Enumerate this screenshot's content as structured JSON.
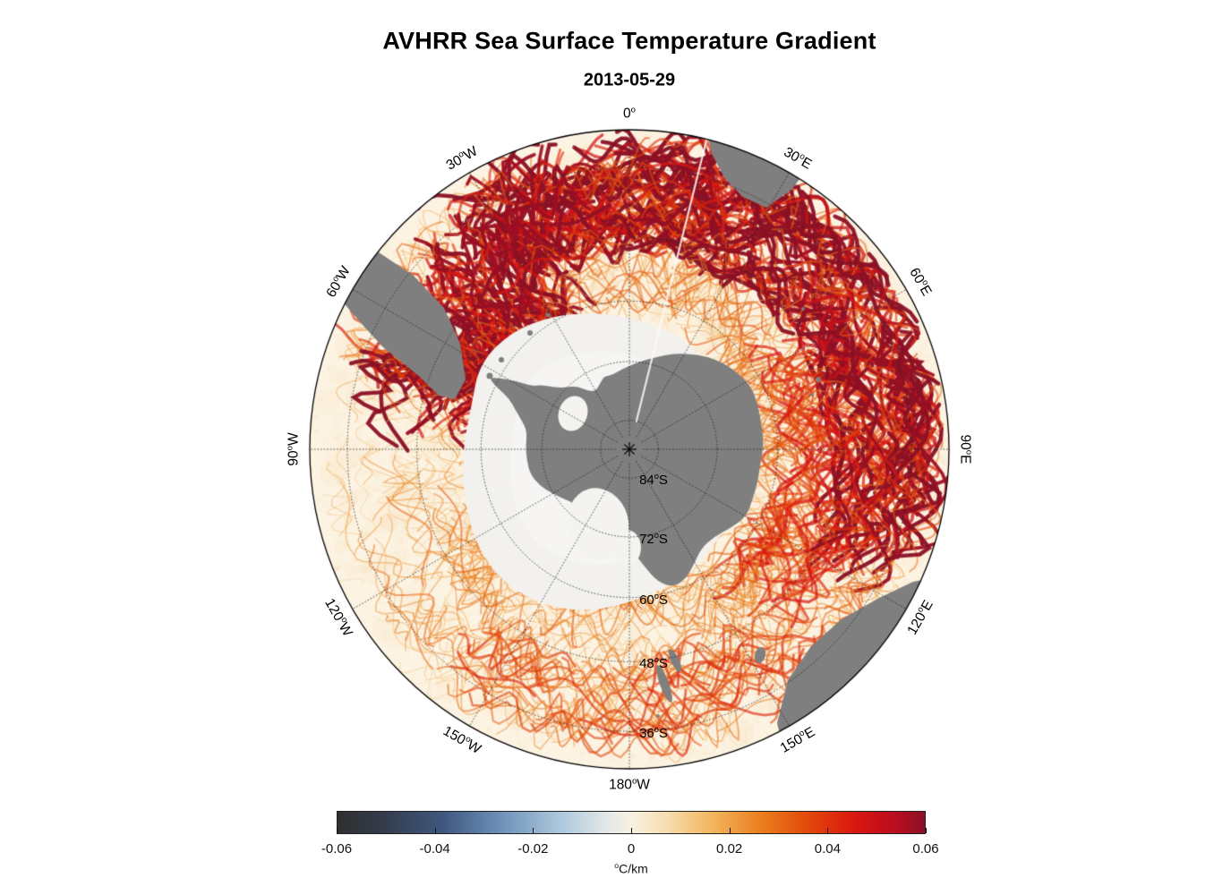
{
  "figure": {
    "title": "AVHRR Sea Surface Temperature Gradient",
    "subtitle": "2013-05-29"
  },
  "chart_data": {
    "type": "heatmap",
    "title": "AVHRR Sea Surface Temperature Gradient",
    "subtitle_date": "2013-05-29",
    "projection": "south-polar-stereographic",
    "latitude_range_deg": [
      -90,
      -30
    ],
    "graticule": {
      "longitude_interval_deg": 30,
      "latitude_circles_deg_s": [
        84,
        72,
        60,
        48,
        36
      ]
    },
    "longitude_labels": [
      {
        "value": "0",
        "sup": "o",
        "hemisphere": "",
        "azimuth_deg": 0
      },
      {
        "value": "30",
        "sup": "o",
        "hemisphere": "E",
        "azimuth_deg": 30
      },
      {
        "value": "60",
        "sup": "o",
        "hemisphere": "E",
        "azimuth_deg": 60
      },
      {
        "value": "90",
        "sup": "o",
        "hemisphere": "E",
        "azimuth_deg": 90
      },
      {
        "value": "120",
        "sup": "o",
        "hemisphere": "E",
        "azimuth_deg": 120
      },
      {
        "value": "150",
        "sup": "o",
        "hemisphere": "E",
        "azimuth_deg": 150
      },
      {
        "value": "180",
        "sup": "o",
        "hemisphere": "W",
        "azimuth_deg": 180
      },
      {
        "value": "150",
        "sup": "o",
        "hemisphere": "W",
        "azimuth_deg": 210
      },
      {
        "value": "120",
        "sup": "o",
        "hemisphere": "W",
        "azimuth_deg": 240
      },
      {
        "value": "90",
        "sup": "o",
        "hemisphere": "W",
        "azimuth_deg": 270
      },
      {
        "value": "60",
        "sup": "o",
        "hemisphere": "W",
        "azimuth_deg": 300
      },
      {
        "value": "30",
        "sup": "o",
        "hemisphere": "W",
        "azimuth_deg": 330
      }
    ],
    "latitude_labels": [
      {
        "value": "84",
        "sup": "o",
        "hemisphere": "S",
        "latitude_deg_s": 84
      },
      {
        "value": "72",
        "sup": "o",
        "hemisphere": "S",
        "latitude_deg_s": 72
      },
      {
        "value": "60",
        "sup": "o",
        "hemisphere": "S",
        "latitude_deg_s": 60
      },
      {
        "value": "48",
        "sup": "o",
        "hemisphere": "S",
        "latitude_deg_s": 48
      },
      {
        "value": "36",
        "sup": "o",
        "hemisphere": "S",
        "latitude_deg_s": 36
      }
    ],
    "colorbar": {
      "min": -0.06,
      "max": 0.06,
      "ticks": [
        -0.06,
        -0.04,
        -0.02,
        0,
        0.02,
        0.04,
        0.06
      ],
      "tick_labels": [
        "-0.06",
        "-0.04",
        "-0.02",
        "0",
        "0.02",
        "0.04",
        "0.06"
      ],
      "unit": {
        "sup": "o",
        "text": "C/km"
      },
      "orientation": "horizontal"
    },
    "colormap_stops": [
      {
        "pos": 0.0,
        "color": "#2f2f2f"
      },
      {
        "pos": 0.08,
        "color": "#343c4c"
      },
      {
        "pos": 0.18,
        "color": "#40587f"
      },
      {
        "pos": 0.28,
        "color": "#6e92ba"
      },
      {
        "pos": 0.38,
        "color": "#aec8dd"
      },
      {
        "pos": 0.46,
        "color": "#e3e8e6"
      },
      {
        "pos": 0.5,
        "color": "#f8f1e1"
      },
      {
        "pos": 0.56,
        "color": "#f7ddb0"
      },
      {
        "pos": 0.64,
        "color": "#f2b45c"
      },
      {
        "pos": 0.72,
        "color": "#ea7f1d"
      },
      {
        "pos": 0.8,
        "color": "#e2490b"
      },
      {
        "pos": 0.88,
        "color": "#da1710"
      },
      {
        "pos": 0.95,
        "color": "#b90d20"
      },
      {
        "pos": 1.0,
        "color": "#8c1126"
      }
    ],
    "map_colors": {
      "background": "#ffffff",
      "ocean_base": "#fcf3e2",
      "sea_ice": "#f2f1ee",
      "land": "#7f7f7f",
      "graticule": "#2a2a2a",
      "rim": "#000000",
      "data_seam": "#fffaf2"
    },
    "visible_landmasses": [
      "Antarctica",
      "South America",
      "Africa",
      "Australia",
      "Tasmania",
      "New Zealand",
      "sub-Antarctic islands"
    ],
    "field_description": "SST gradient magnitude; strong warm-colored (orange to dark red) filaments along the Antarctic Circumpolar Current belt, near-zero (cream) elsewhere; land gray, sea-ice zone around Antarctica white"
  }
}
